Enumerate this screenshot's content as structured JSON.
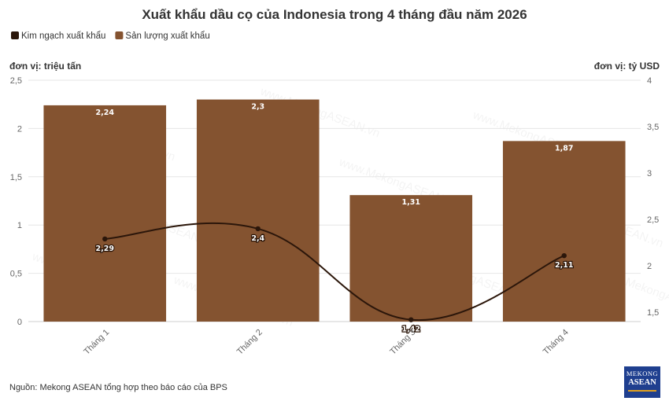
{
  "chart_data": {
    "type": "bar",
    "title": "Xuất khẩu dầu cọ của Indonesia trong 4 tháng đầu năm 2026",
    "categories": [
      "Tháng 1",
      "Tháng 2",
      "Tháng 3",
      "Tháng 4"
    ],
    "series": [
      {
        "name": "Kim ngạch xuất khẩu",
        "type": "line",
        "axis": "right",
        "color": "#2b160a",
        "values": [
          2.29,
          2.4,
          1.42,
          2.11
        ],
        "labels": [
          "2,29",
          "2,4",
          "1,42",
          "2,11"
        ]
      },
      {
        "name": "Sản lượng xuất khẩu",
        "type": "bar",
        "axis": "left",
        "color": "#845330",
        "values": [
          2.24,
          2.3,
          1.31,
          1.87
        ],
        "labels": [
          "2,24",
          "2,3",
          "1,31",
          "1,87"
        ]
      }
    ],
    "y_left": {
      "label": "đơn vị: triệu tấn",
      "ylim": [
        0,
        2.5
      ],
      "ticks": [
        0,
        0.5,
        1,
        1.5,
        2,
        2.5
      ],
      "tick_labels": [
        "0",
        "0,5",
        "1",
        "1,5",
        "2",
        "2,5"
      ]
    },
    "y_right": {
      "label": "đơn vị: tỷ USD",
      "ylim": [
        1.4,
        4
      ],
      "ticks": [
        1.5,
        2,
        2.5,
        3,
        3.5,
        4
      ],
      "tick_labels": [
        "1,5",
        "2",
        "2,5",
        "3",
        "3,5",
        "4"
      ]
    },
    "grid": true,
    "legend_position": "top-left"
  },
  "watermark": "www.MekongASEAN.vn",
  "source": "Nguồn: Mekong ASEAN tổng hợp theo báo cáo của BPS",
  "logo": {
    "line1": "MEKONG",
    "line2": "ASEAN"
  }
}
